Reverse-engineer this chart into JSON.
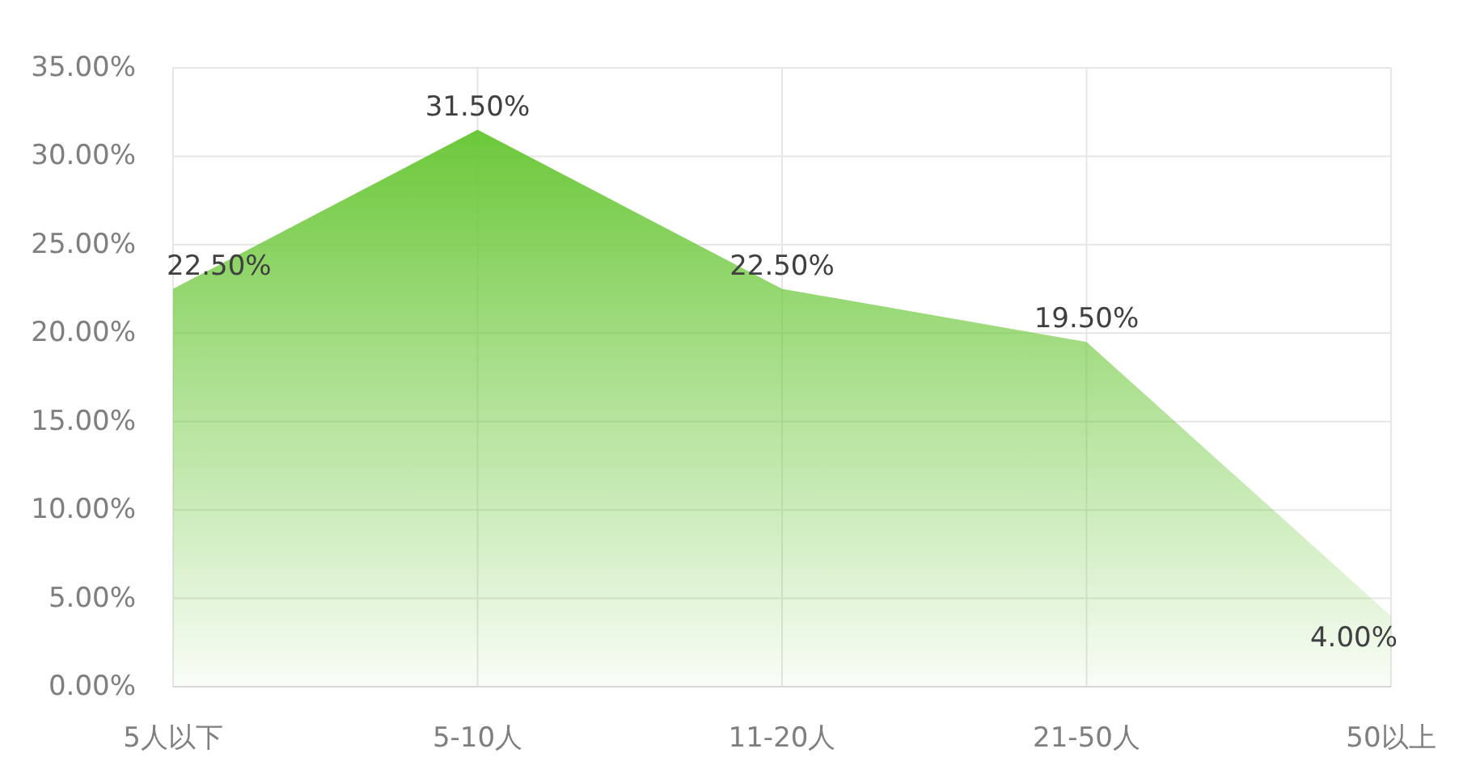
{
  "chart_data": {
    "type": "area",
    "categories": [
      "5人以下",
      "5-10人",
      "11-20人",
      "21-50人",
      "50以上"
    ],
    "series": [
      {
        "color": "#6cc83a",
        "values": [
          22.5,
          31.5,
          22.5,
          19.5,
          4.0
        ],
        "value_labels": [
          "22.50%",
          "31.50%",
          "22.50%",
          "19.50%",
          "4.00%"
        ]
      }
    ],
    "ylim": [
      0,
      35
    ],
    "yticks": [
      {
        "value": 0,
        "label": "0.00%"
      },
      {
        "value": 5,
        "label": "5.00%"
      },
      {
        "value": 10,
        "label": "10.00%"
      },
      {
        "value": 15,
        "label": "15.00%"
      },
      {
        "value": 20,
        "label": "20.00%"
      },
      {
        "value": 25,
        "label": "25.00%"
      },
      {
        "value": 30,
        "label": "30.00%"
      },
      {
        "value": 35,
        "label": "35.00%"
      }
    ],
    "grid": true
  }
}
